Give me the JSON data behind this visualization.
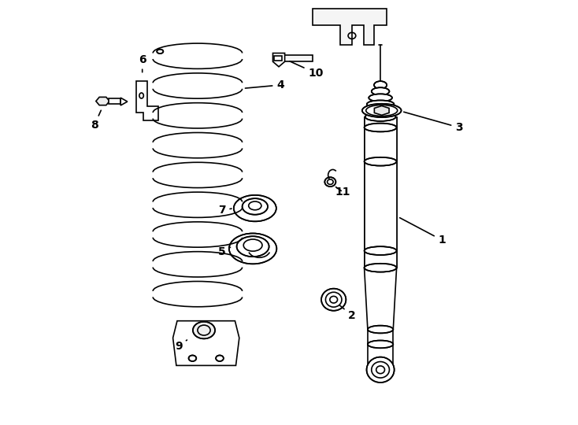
{
  "bg_color": "#ffffff",
  "line_color": "#000000",
  "line_width": 1.2,
  "fig_width": 7.34,
  "fig_height": 5.4,
  "dpi": 100
}
